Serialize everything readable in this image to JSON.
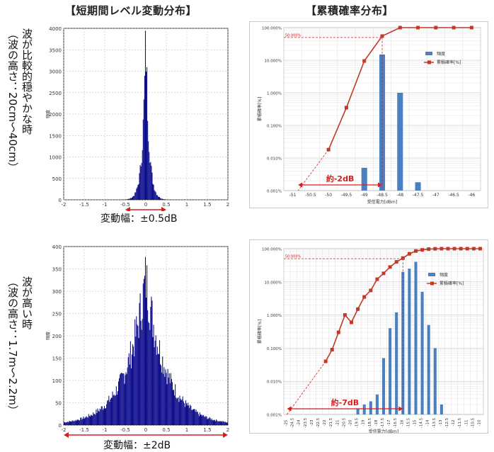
{
  "headers": {
    "left": "【短期間レベル変動分布】",
    "right": "【累積確率分布】"
  },
  "rows": [
    {
      "label_line1": "波が比較的穏やかな時",
      "label_line2": "（波の高さ：20cm～40cm）"
    },
    {
      "label_line1": "波が高い時",
      "label_line2": "（波の高さ：1.7m～2.2m）"
    }
  ],
  "chart_data": [
    {
      "id": "hist-calm",
      "type": "bar",
      "title": "",
      "xlabel": "",
      "ylabel": "頻度",
      "xlim": [
        -2,
        2
      ],
      "ylim": [
        0,
        4000
      ],
      "xticks": [
        "-2",
        "-1.5",
        "-1",
        "-0.5",
        "0",
        "0.5",
        "1",
        "1.5",
        "2"
      ],
      "yticks": [
        "0",
        "500",
        "1000",
        "1500",
        "2000",
        "2500",
        "3000",
        "3500",
        "4000"
      ],
      "shape": {
        "peak": 3800,
        "center": 0,
        "scale": 0.08
      },
      "color": "#0d0d8c",
      "range_label": "変動幅：±0.5dB",
      "range": [
        -0.5,
        0.5
      ]
    },
    {
      "id": "cdf-calm",
      "type": "bar",
      "title": "",
      "xlabel": "受信電力[dBm]",
      "ylabel": "累積確率[%]",
      "yscale": "log",
      "ylim": [
        0.001,
        100
      ],
      "yticks": [
        "0.001%",
        "0.010%",
        "0.100%",
        "1.000%",
        "10.000%",
        "100.000%"
      ],
      "categories": [
        "-51",
        "-50.5",
        "-50",
        "-49.5",
        "-49",
        "-48.5",
        "-48",
        "-47.5",
        "-47",
        "-46.5",
        "-46"
      ],
      "series": [
        {
          "name": "頻度",
          "values": [
            null,
            null,
            null,
            null,
            0.005,
            15,
            1,
            0.0018,
            null,
            null,
            null
          ],
          "color": "#4a7fc1"
        },
        {
          "name": "累積確率[%]",
          "values": [
            null,
            null,
            0.018,
            0.35,
            9.5,
            55,
            100,
            100,
            100,
            100,
            100
          ],
          "color": "#c0392b"
        }
      ],
      "fifty_label": "50.000%",
      "annotation": "約-2dB",
      "legend_position": "top-right"
    },
    {
      "id": "hist-rough",
      "type": "bar",
      "title": "",
      "xlabel": "",
      "ylabel": "頻度",
      "xlim": [
        -2,
        2
      ],
      "ylim": [
        0,
        400
      ],
      "xticks": [
        "-2",
        "-1.5",
        "-1",
        "-0.5",
        "0",
        "0.5",
        "1",
        "1.5",
        "2"
      ],
      "yticks": [
        "0",
        "50",
        "100",
        "150",
        "200",
        "250",
        "300",
        "350",
        "400"
      ],
      "shape": {
        "peak": 330,
        "center": 0,
        "scale": 0.5
      },
      "color": "#0d0d8c",
      "range_label": "変動幅：±2dB",
      "range": [
        -2,
        2
      ]
    },
    {
      "id": "cdf-rough",
      "type": "bar",
      "title": "",
      "xlabel": "受信電力[dBm]",
      "ylabel": "累積確率[%]",
      "yscale": "log",
      "ylim": [
        0.001,
        100
      ],
      "yticks": [
        "0.001%",
        "0.010%",
        "0.100%",
        "1.000%",
        "10.000%",
        "100.000%"
      ],
      "categories": [
        "-25",
        "-24.5",
        "-24",
        "-23.5",
        "-23",
        "-22.5",
        "-22",
        "-21.5",
        "-21",
        "-20.5",
        "-20",
        "-19.5",
        "-19",
        "-18.5",
        "-18",
        "-17.5",
        "-17",
        "-16.5",
        "-16",
        "-15.5",
        "-15",
        "-14.5",
        "-14",
        "-13.5",
        "-13",
        "-12.5",
        "-12",
        "-11.5",
        "-11",
        "-10.5",
        "-10"
      ],
      "series": [
        {
          "name": "頻度",
          "values": [
            null,
            null,
            null,
            null,
            null,
            null,
            null,
            null,
            null,
            null,
            null,
            0.0015,
            0.002,
            0.0025,
            0.004,
            0.05,
            0.4,
            1.2,
            20,
            25,
            40,
            5,
            0.5,
            0.1,
            0.002,
            null,
            null,
            null,
            null,
            null,
            null
          ],
          "color": "#4a7fc1"
        },
        {
          "name": "累積確率[%]",
          "values": [
            null,
            null,
            null,
            null,
            null,
            null,
            0.04,
            0.09,
            0.3,
            1,
            0.6,
            1.5,
            3.5,
            5.5,
            12,
            18,
            28,
            40,
            52,
            70,
            85,
            92,
            97,
            99,
            100,
            100,
            100,
            100,
            100,
            100,
            100
          ],
          "color": "#c0392b"
        }
      ],
      "fifty_label": "50.000%",
      "annotation": "約-7dB",
      "legend_position": "top-right"
    }
  ]
}
